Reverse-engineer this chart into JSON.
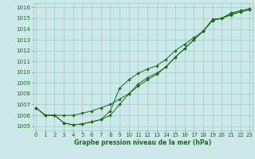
{
  "title": "Graphe pression niveau de la mer (hPa)",
  "bg_color": "#cce8e8",
  "grid_color": "#99cccc",
  "line_color": "#1a6b1a",
  "x_ticks": [
    0,
    1,
    2,
    3,
    4,
    5,
    6,
    7,
    8,
    9,
    10,
    11,
    12,
    13,
    14,
    15,
    16,
    17,
    18,
    19,
    20,
    21,
    22,
    23
  ],
  "y_ticks": [
    1005,
    1006,
    1007,
    1008,
    1009,
    1010,
    1011,
    1012,
    1013,
    1014,
    1015,
    1016
  ],
  "xlim": [
    -0.3,
    23.3
  ],
  "ylim": [
    1004.6,
    1016.4
  ],
  "line1": [
    1006.7,
    1006.0,
    1006.0,
    1006.0,
    1006.0,
    1006.2,
    1006.4,
    1006.7,
    1007.0,
    1007.5,
    1008.0,
    1008.7,
    1009.3,
    1009.8,
    1010.5,
    1011.4,
    1012.2,
    1013.0,
    1013.8,
    1014.9,
    1015.0,
    1015.5,
    1015.7,
    1015.9
  ],
  "line2": [
    1006.7,
    1006.0,
    1006.0,
    1005.3,
    1005.1,
    1005.2,
    1005.4,
    1005.6,
    1006.0,
    1007.0,
    1008.0,
    1008.9,
    1009.5,
    1009.9,
    1010.5,
    1011.4,
    1012.2,
    1013.0,
    1013.8,
    1014.8,
    1015.0,
    1015.4,
    1015.6,
    1015.8
  ],
  "line3": [
    1006.7,
    1006.0,
    1006.0,
    1005.3,
    1005.1,
    1005.2,
    1005.4,
    1005.6,
    1006.4,
    1008.5,
    1009.3,
    1009.9,
    1010.3,
    1010.6,
    1011.2,
    1012.0,
    1012.6,
    1013.2,
    1013.8,
    1014.8,
    1015.0,
    1015.3,
    1015.6,
    1015.8
  ],
  "ylabel_fontsize": 5,
  "xlabel_fontsize": 5.5,
  "tick_fontsize": 5,
  "marker_size": 1.8,
  "line_width": 0.7
}
